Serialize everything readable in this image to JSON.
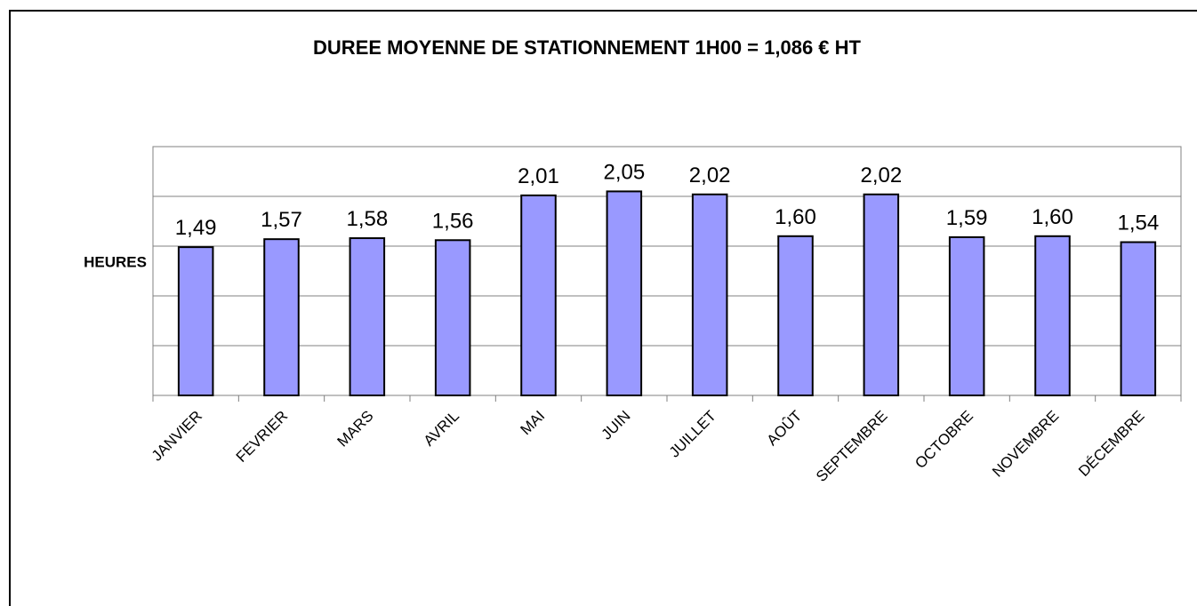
{
  "chart_data": {
    "type": "bar",
    "title": "DUREE MOYENNE DE STATIONNEMENT 1H00 = 1,086 € HT",
    "y_label": "HEURES",
    "categories": [
      "JANVIER",
      "FEVRIER",
      "MARS",
      "AVRIL",
      "MAI",
      "JUIN",
      "JUILLET",
      "AOÛT",
      "SEPTEMBRE",
      "OCTOBRE",
      "NOVEMBRE",
      "DÉCEMBRE"
    ],
    "values": [
      1.49,
      1.57,
      1.58,
      1.56,
      2.01,
      2.05,
      2.02,
      1.6,
      2.02,
      1.59,
      1.6,
      1.54
    ],
    "value_labels": [
      "1,49",
      "1,57",
      "1,58",
      "1,56",
      "2,01",
      "2,05",
      "2,02",
      "1,60",
      "2,02",
      "1,59",
      "1,60",
      "1,54"
    ],
    "color": "#9999ff",
    "ylim": [
      0,
      2.5
    ],
    "yticks": [
      0,
      0.5,
      1,
      1.5,
      2,
      2.5
    ],
    "grid": true
  }
}
